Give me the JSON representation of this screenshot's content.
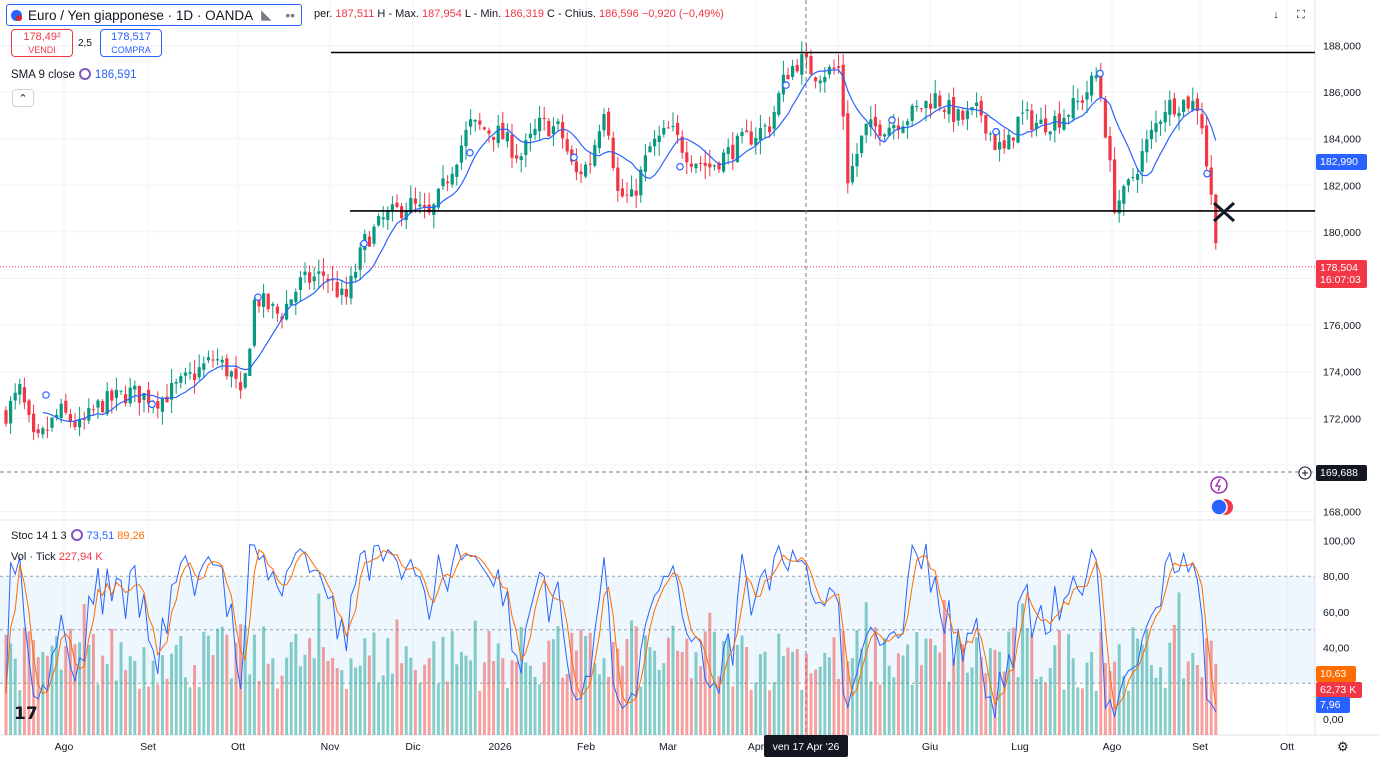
{
  "header": {
    "symbol": "Euro / Yen giapponese · 1D · OANDA",
    "ohlc": [
      {
        "k": "per.",
        "v": "187,511"
      },
      {
        "k": "H - Max.",
        "v": "187,954"
      },
      {
        "k": "L - Min.",
        "v": "186,319"
      },
      {
        "k": "C - Chius.",
        "v": "186,596"
      },
      {
        "k": "",
        "v": "−0,920 (−0,49%)"
      }
    ],
    "sell_price": "178,49²",
    "sell_label": "VENDI",
    "spread": "2,5",
    "buy_price": "178,517",
    "buy_label": "COMPRA",
    "sma_label": "SMA 9 close",
    "sma_value": "186,591",
    "collapse_icon": "chevron-up-icon"
  },
  "price_axis": {
    "ticks": [
      "188,000",
      "186,000",
      "184,000",
      "182,000",
      "180,000",
      "176,000",
      "174,000",
      "172,000",
      "168,000"
    ],
    "tick_values": [
      188,
      186,
      184,
      182,
      180,
      176,
      174,
      172,
      168
    ]
  },
  "tags": {
    "sma": {
      "text": "182,990",
      "color": "#2962ff"
    },
    "price": {
      "text": "178,504",
      "countdown": "16:07:03",
      "color": "#f23645"
    },
    "crosshair": {
      "text": "169,688"
    }
  },
  "stoch": {
    "label": "Stoc 14 1 3",
    "k_value": "73,51",
    "d_value": "89,26",
    "vol_label": "Vol · Tick",
    "vol_value": "227,94 K",
    "ticks": [
      "100,00",
      "80,00",
      "60,00",
      "40,00",
      "0,00"
    ],
    "tick_values": [
      100,
      80,
      60,
      40,
      0
    ],
    "tags": {
      "d": "10,63",
      "vol": "62,73 K",
      "k": "7,96"
    },
    "colors": {
      "k": "#2962ff",
      "d": "#ff6d00",
      "vol_up": "#26a69a",
      "vol_down": "#ef5350"
    }
  },
  "time_axis": {
    "labels": [
      "Ago",
      "Set",
      "Ott",
      "Nov",
      "Dic",
      "2026",
      "Feb",
      "Mar",
      "Apr",
      "Mag",
      "Giu",
      "Lug",
      "Ago",
      "Set",
      "Ott"
    ],
    "crosshair_date": "ven 17 Apr '26"
  },
  "logo": "17",
  "levels": {
    "resistance": 187.7,
    "support": 180.9,
    "last": 178.5
  },
  "colors": {
    "up": "#089981",
    "down": "#f23645",
    "sma": "#2962ff"
  }
}
